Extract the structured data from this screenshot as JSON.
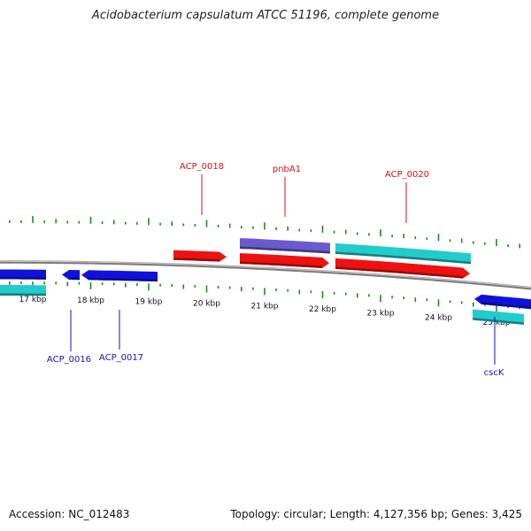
{
  "title": "Acidobacterium capsulatum ATCC 51196, complete genome",
  "footer": {
    "accession": "Accession: NC_012483",
    "stats": "Topology: circular; Length: 4,127,356 bp; Genes: 3,425"
  },
  "colors": {
    "backbone": "#7a7a7a",
    "tick_green": "#1e8c1e",
    "forward_cds": "#ee1111",
    "reverse_cds": "#1111dd",
    "rna_purple": "#6a5acd",
    "teal_gene": "#22cccc",
    "label_red": "#dd1111",
    "label_blue": "#1111bb"
  },
  "tick_labels": [
    "17 kbp",
    "18 kbp",
    "19 kbp",
    "20 kbp",
    "21 kbp",
    "22 kbp",
    "23 kbp",
    "24 kbp",
    "25 kbp"
  ],
  "features": [
    {
      "kind": "reverse",
      "label": ""
    },
    {
      "kind": "teal",
      "label": ""
    },
    {
      "kind": "reverse",
      "label": ""
    },
    {
      "kind": "reverse",
      "label": ""
    },
    {
      "kind": "forward",
      "label": ""
    },
    {
      "kind": "purple",
      "label": ""
    },
    {
      "kind": "forward",
      "label": ""
    },
    {
      "kind": "teal",
      "label": ""
    },
    {
      "kind": "forward",
      "label": ""
    },
    {
      "kind": "reverse",
      "label": ""
    },
    {
      "kind": "teal",
      "label": ""
    }
  ],
  "gene_labels": [
    {
      "text": "ACP_0018",
      "color_key": "label_red"
    },
    {
      "text": "pnbA1",
      "color_key": "label_red"
    },
    {
      "text": "ACP_0020",
      "color_key": "label_red"
    },
    {
      "text": "ACP_0016",
      "color_key": "label_blue"
    },
    {
      "text": "ACP_0017",
      "color_key": "label_blue"
    },
    {
      "text": "cscK",
      "color_key": "label_blue"
    }
  ]
}
